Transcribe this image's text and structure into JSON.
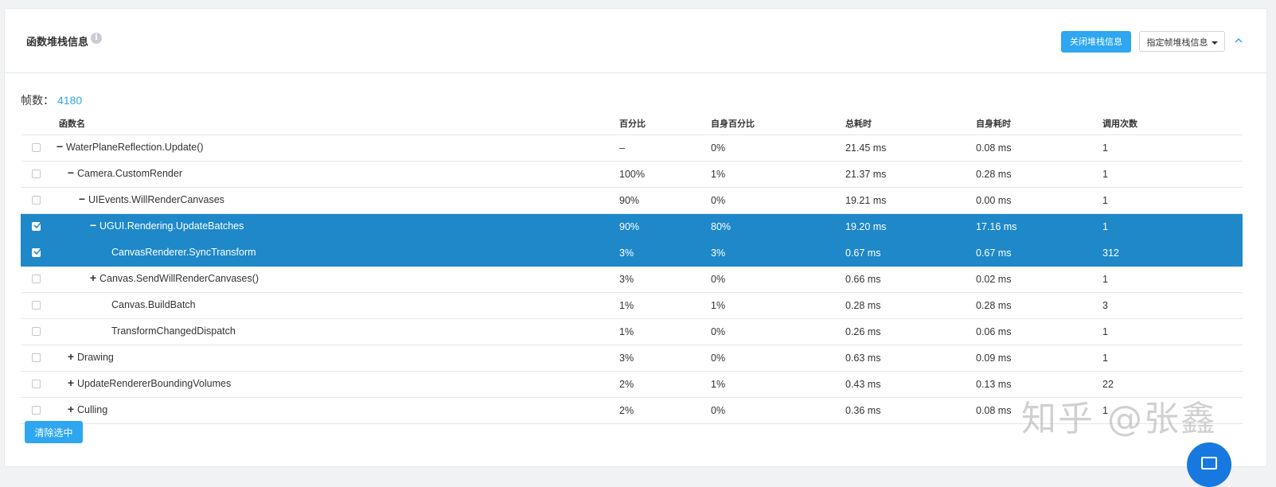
{
  "panel": {
    "title": "函数堆栈信息",
    "info_icon": "info-icon",
    "close_stack_button": "关闭堆栈信息",
    "frame_stack_dropdown": "指定帧堆栈信息",
    "collapse_icon": "chevron-up-icon"
  },
  "frame": {
    "label": "帧数：",
    "value": "4180"
  },
  "table": {
    "headers": {
      "name": "函数名",
      "pct": "百分比",
      "self_pct": "自身百分比",
      "total": "总耗时",
      "self": "自身耗时",
      "calls": "调用次数"
    },
    "rows": [
      {
        "checked": false,
        "selected": false,
        "indent": 0,
        "toggle": "−",
        "name": "WaterPlaneReflection.Update()",
        "pct": "–",
        "self_pct": "0%",
        "total": "21.45 ms",
        "self": "0.08 ms",
        "calls": "1"
      },
      {
        "checked": false,
        "selected": false,
        "indent": 1,
        "toggle": "−",
        "name": "Camera.CustomRender",
        "pct": "100%",
        "self_pct": "1%",
        "total": "21.37 ms",
        "self": "0.28 ms",
        "calls": "1"
      },
      {
        "checked": false,
        "selected": false,
        "indent": 2,
        "toggle": "−",
        "name": "UIEvents.WillRenderCanvases",
        "pct": "90%",
        "self_pct": "0%",
        "total": "19.21 ms",
        "self": "0.00 ms",
        "calls": "1"
      },
      {
        "checked": true,
        "selected": true,
        "indent": 3,
        "toggle": "−",
        "name": "UGUI.Rendering.UpdateBatches",
        "pct": "90%",
        "self_pct": "80%",
        "total": "19.20 ms",
        "self": "17.16 ms",
        "calls": "1"
      },
      {
        "checked": true,
        "selected": true,
        "indent": 4,
        "toggle": "",
        "name": "CanvasRenderer.SyncTransform",
        "pct": "3%",
        "self_pct": "3%",
        "total": "0.67 ms",
        "self": "0.67 ms",
        "calls": "312"
      },
      {
        "checked": false,
        "selected": false,
        "indent": 3,
        "toggle": "+",
        "name": "Canvas.SendWillRenderCanvases()",
        "pct": "3%",
        "self_pct": "0%",
        "total": "0.66 ms",
        "self": "0.02 ms",
        "calls": "1"
      },
      {
        "checked": false,
        "selected": false,
        "indent": 4,
        "toggle": "",
        "name": "Canvas.BuildBatch",
        "pct": "1%",
        "self_pct": "1%",
        "total": "0.28 ms",
        "self": "0.28 ms",
        "calls": "3"
      },
      {
        "checked": false,
        "selected": false,
        "indent": 4,
        "toggle": "",
        "name": "TransformChangedDispatch",
        "pct": "1%",
        "self_pct": "0%",
        "total": "0.26 ms",
        "self": "0.06 ms",
        "calls": "1"
      },
      {
        "checked": false,
        "selected": false,
        "indent": 1,
        "toggle": "+",
        "name": "Drawing",
        "pct": "3%",
        "self_pct": "0%",
        "total": "0.63 ms",
        "self": "0.09 ms",
        "calls": "1"
      },
      {
        "checked": false,
        "selected": false,
        "indent": 1,
        "toggle": "+",
        "name": "UpdateRendererBoundingVolumes",
        "pct": "2%",
        "self_pct": "1%",
        "total": "0.43 ms",
        "self": "0.13 ms",
        "calls": "22"
      },
      {
        "checked": false,
        "selected": false,
        "indent": 1,
        "toggle": "+",
        "name": "Culling",
        "pct": "2%",
        "self_pct": "0%",
        "total": "0.36 ms",
        "self": "0.08 ms",
        "calls": "1"
      }
    ]
  },
  "clear_button": "清除选中",
  "watermark": "知乎 @张鑫",
  "fab_icon": "chat-icon",
  "colors": {
    "accent": "#2ea6f0",
    "selected_row": "#1e88c9",
    "fab": "#1779e0"
  }
}
